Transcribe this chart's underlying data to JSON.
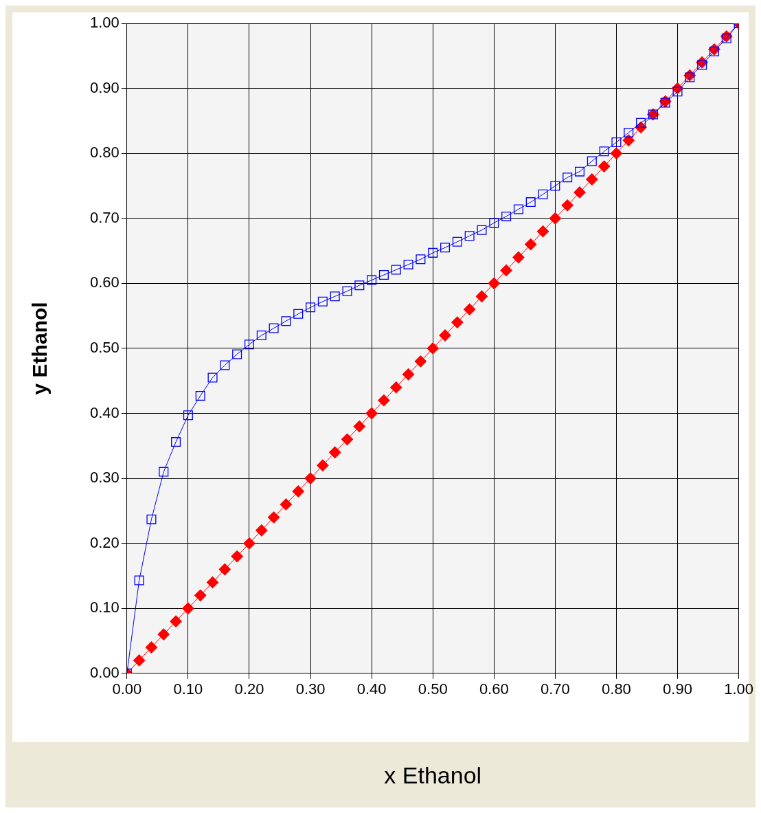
{
  "chart_data": {
    "type": "line",
    "xlabel": "x Ethanol",
    "ylabel": "y Ethanol",
    "x": [
      0,
      0.02,
      0.04,
      0.06,
      0.08,
      0.1,
      0.12,
      0.14,
      0.16,
      0.18,
      0.2,
      0.22,
      0.24,
      0.26,
      0.28,
      0.3,
      0.32,
      0.34,
      0.36,
      0.38,
      0.4,
      0.42,
      0.44,
      0.46,
      0.48,
      0.5,
      0.52,
      0.54,
      0.56,
      0.58,
      0.6,
      0.62,
      0.64,
      0.66,
      0.68,
      0.7,
      0.72,
      0.74,
      0.76,
      0.78,
      0.8,
      0.82,
      0.84,
      0.86,
      0.88,
      0.9,
      0.92,
      0.94,
      0.96,
      0.98,
      1
    ],
    "series": [
      {
        "color": "#0000ff",
        "marker": "square",
        "values": [
          0,
          0.143,
          0.237,
          0.31,
          0.356,
          0.397,
          0.427,
          0.455,
          0.474,
          0.491,
          0.506,
          0.52,
          0.531,
          0.542,
          0.553,
          0.563,
          0.572,
          0.58,
          0.588,
          0.597,
          0.605,
          0.613,
          0.621,
          0.629,
          0.637,
          0.647,
          0.655,
          0.664,
          0.673,
          0.682,
          0.693,
          0.703,
          0.714,
          0.725,
          0.737,
          0.75,
          0.763,
          0.772,
          0.788,
          0.803,
          0.817,
          0.832,
          0.847,
          0.86,
          0.878,
          0.895,
          0.917,
          0.936,
          0.957,
          0.977,
          1
        ]
      },
      {
        "color": "#ff0000",
        "marker": "diamond",
        "values": [
          0,
          0.02,
          0.04,
          0.06,
          0.08,
          0.1,
          0.12,
          0.14,
          0.16,
          0.18,
          0.2,
          0.22,
          0.24,
          0.26,
          0.28,
          0.3,
          0.32,
          0.34,
          0.36,
          0.38,
          0.4,
          0.42,
          0.44,
          0.46,
          0.48,
          0.5,
          0.52,
          0.54,
          0.56,
          0.58,
          0.6,
          0.62,
          0.64,
          0.66,
          0.68,
          0.7,
          0.72,
          0.74,
          0.76,
          0.78,
          0.8,
          0.82,
          0.84,
          0.86,
          0.88,
          0.9,
          0.92,
          0.94,
          0.96,
          0.98,
          1
        ]
      }
    ],
    "xlim": [
      0,
      1
    ],
    "ylim": [
      0,
      1
    ],
    "xticks": [
      {
        "value": 0,
        "label": "0.00"
      },
      {
        "value": 0.1,
        "label": "0.10"
      },
      {
        "value": 0.2,
        "label": "0.20"
      },
      {
        "value": 0.3,
        "label": "0.30"
      },
      {
        "value": 0.4,
        "label": "0.40"
      },
      {
        "value": 0.5,
        "label": "0.50"
      },
      {
        "value": 0.6,
        "label": "0.60"
      },
      {
        "value": 0.7,
        "label": "0.70"
      },
      {
        "value": 0.8,
        "label": "0.80"
      },
      {
        "value": 0.9,
        "label": "0.90"
      },
      {
        "value": 1,
        "label": "1.00"
      }
    ],
    "yticks": [
      {
        "value": 0,
        "label": "0.00"
      },
      {
        "value": 0.1,
        "label": "0.10"
      },
      {
        "value": 0.2,
        "label": "0.20"
      },
      {
        "value": 0.3,
        "label": "0.30"
      },
      {
        "value": 0.4,
        "label": "0.40"
      },
      {
        "value": 0.5,
        "label": "0.50"
      },
      {
        "value": 0.6,
        "label": "0.60"
      },
      {
        "value": 0.7,
        "label": "0.70"
      },
      {
        "value": 0.8,
        "label": "0.80"
      },
      {
        "value": 0.9,
        "label": "0.90"
      },
      {
        "value": 1,
        "label": "1.00"
      }
    ],
    "grid": true,
    "legend": false,
    "line_style": "solid"
  }
}
